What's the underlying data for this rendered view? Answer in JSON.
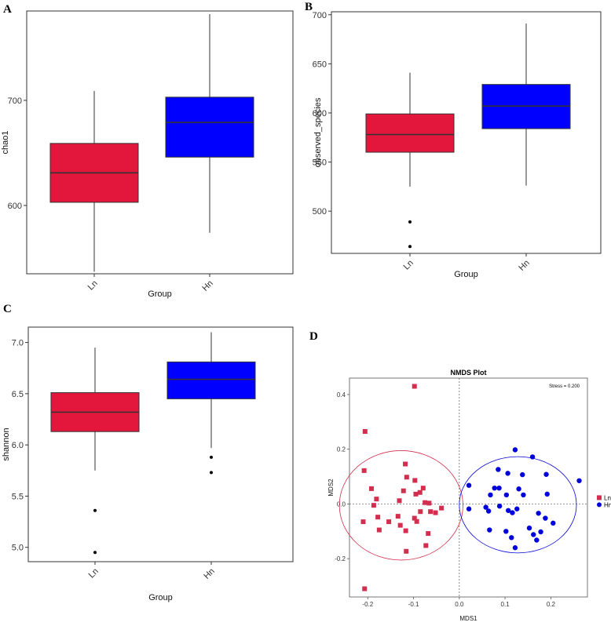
{
  "chart_data": [
    {
      "type": "boxplot",
      "panel": "A",
      "xlabel": "Group",
      "ylabel": "chao1",
      "ylim": [
        535,
        785
      ],
      "yticks": [
        600,
        700
      ],
      "categories": [
        "Ln",
        "Hn"
      ],
      "colors": [
        "#E3163C",
        "#0000FF"
      ],
      "boxes": [
        {
          "name": "Ln",
          "whisker_low": 537,
          "q1": 603,
          "median": 631,
          "q3": 659,
          "whisker_high": 709,
          "outliers": []
        },
        {
          "name": "Hn",
          "whisker_low": 574,
          "q1": 646,
          "median": 679,
          "q3": 703,
          "whisker_high": 782,
          "outliers": []
        }
      ]
    },
    {
      "type": "boxplot",
      "panel": "B",
      "xlabel": "Group",
      "ylabel": "observed_species",
      "ylim": [
        457,
        703
      ],
      "yticks": [
        500,
        550,
        600,
        650,
        700
      ],
      "categories": [
        "Ln",
        "Hn"
      ],
      "colors": [
        "#E3163C",
        "#0000FF"
      ],
      "boxes": [
        {
          "name": "Ln",
          "whisker_low": 525,
          "q1": 560,
          "median": 578,
          "q3": 599,
          "whisker_high": 641,
          "outliers": [
            489,
            464
          ]
        },
        {
          "name": "Hn",
          "whisker_low": 526,
          "q1": 584,
          "median": 607,
          "q3": 629,
          "whisker_high": 691,
          "outliers": []
        }
      ]
    },
    {
      "type": "boxplot",
      "panel": "C",
      "xlabel": "Group",
      "ylabel": "shannon",
      "ylim": [
        4.86,
        7.15
      ],
      "yticks": [
        5.0,
        5.5,
        6.0,
        6.5,
        7.0
      ],
      "categories": [
        "Ln",
        "Hn"
      ],
      "colors": [
        "#E3163C",
        "#0000FF"
      ],
      "boxes": [
        {
          "name": "Ln",
          "whisker_low": 5.75,
          "q1": 6.13,
          "median": 6.32,
          "q3": 6.51,
          "whisker_high": 6.95,
          "outliers": [
            5.36,
            4.95
          ]
        },
        {
          "name": "Hn",
          "whisker_low": 5.97,
          "q1": 6.45,
          "median": 6.64,
          "q3": 6.81,
          "whisker_high": 7.1,
          "outliers": [
            5.88,
            5.73
          ]
        }
      ]
    },
    {
      "type": "scatter",
      "panel": "D",
      "title": "NMDS Plot",
      "xlabel": "MDS1",
      "ylabel": "MDS2",
      "xlim": [
        -0.24,
        0.28
      ],
      "ylim": [
        -0.34,
        0.46
      ],
      "xticks": [
        -0.2,
        -0.1,
        0.0,
        0.1,
        0.2
      ],
      "yticks": [
        -0.2,
        0.0,
        0.2,
        0.4
      ],
      "annotation": "Stress = 0.200",
      "legend": [
        "Ln",
        "Hn"
      ],
      "colors": [
        "#D42E4E",
        "#0000DD"
      ],
      "ellipses": [
        {
          "name": "Ln",
          "cx": -0.127,
          "cy": -0.005,
          "rx": 0.135,
          "ry": 0.2
        },
        {
          "name": "Hn",
          "cx": 0.128,
          "cy": -0.003,
          "rx": 0.128,
          "ry": 0.176
        }
      ],
      "series": [
        {
          "name": "Ln",
          "marker": "square",
          "points": [
            [
              -0.098,
              0.43
            ],
            [
              -0.206,
              0.265
            ],
            [
              -0.208,
              0.122
            ],
            [
              -0.192,
              0.056
            ],
            [
              -0.118,
              0.146
            ],
            [
              -0.097,
              0.086
            ],
            [
              -0.095,
              0.036
            ],
            [
              -0.086,
              0.042
            ],
            [
              -0.079,
              0.058
            ],
            [
              -0.075,
              0.005
            ],
            [
              -0.115,
              0.098
            ],
            [
              -0.122,
              0.048
            ],
            [
              -0.131,
              0.012
            ],
            [
              -0.181,
              0.018
            ],
            [
              -0.187,
              -0.005
            ],
            [
              -0.21,
              -0.065
            ],
            [
              -0.178,
              -0.048
            ],
            [
              -0.175,
              -0.095
            ],
            [
              -0.154,
              -0.065
            ],
            [
              -0.134,
              -0.045
            ],
            [
              -0.129,
              -0.078
            ],
            [
              -0.117,
              -0.098
            ],
            [
              -0.098,
              -0.052
            ],
            [
              -0.093,
              -0.064
            ],
            [
              -0.085,
              -0.028
            ],
            [
              -0.066,
              0.003
            ],
            [
              -0.063,
              -0.028
            ],
            [
              -0.052,
              -0.032
            ],
            [
              -0.039,
              -0.015
            ],
            [
              -0.068,
              -0.108
            ],
            [
              -0.073,
              -0.152
            ],
            [
              -0.116,
              -0.173
            ],
            [
              -0.207,
              -0.31
            ]
          ]
        },
        {
          "name": "Hn",
          "marker": "circle",
          "points": [
            [
              0.122,
              0.198
            ],
            [
              0.16,
              0.172
            ],
            [
              0.085,
              0.126
            ],
            [
              0.106,
              0.112
            ],
            [
              0.138,
              0.107
            ],
            [
              0.19,
              0.108
            ],
            [
              0.021,
              0.068
            ],
            [
              0.077,
              0.058
            ],
            [
              0.087,
              0.058
            ],
            [
              0.13,
              0.055
            ],
            [
              0.262,
              0.085
            ],
            [
              0.068,
              0.033
            ],
            [
              0.103,
              0.033
            ],
            [
              0.14,
              0.033
            ],
            [
              0.192,
              0.036
            ],
            [
              0.058,
              -0.012
            ],
            [
              0.064,
              -0.026
            ],
            [
              0.088,
              -0.008
            ],
            [
              0.107,
              -0.024
            ],
            [
              0.116,
              -0.032
            ],
            [
              0.126,
              -0.018
            ],
            [
              0.173,
              -0.034
            ],
            [
              0.188,
              -0.052
            ],
            [
              0.205,
              -0.07
            ],
            [
              0.021,
              -0.018
            ],
            [
              0.066,
              -0.095
            ],
            [
              0.102,
              -0.1
            ],
            [
              0.114,
              -0.123
            ],
            [
              0.153,
              -0.088
            ],
            [
              0.162,
              -0.112
            ],
            [
              0.178,
              -0.102
            ],
            [
              0.169,
              -0.132
            ],
            [
              0.122,
              -0.16
            ]
          ]
        }
      ]
    }
  ]
}
